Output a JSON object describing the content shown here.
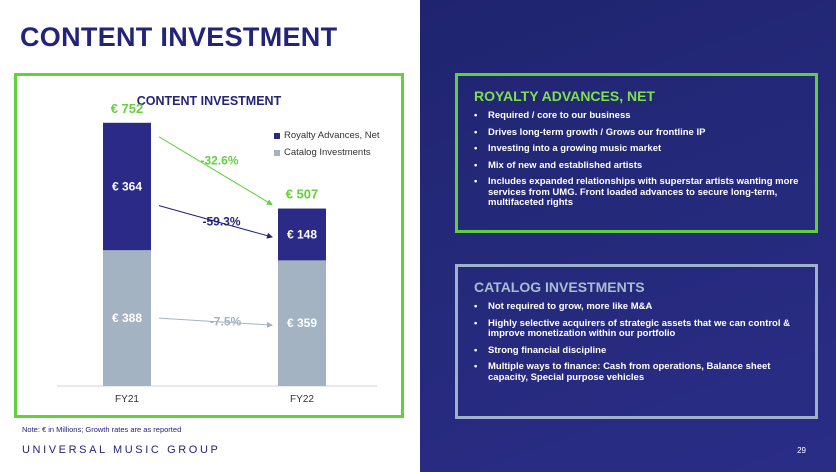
{
  "page": {
    "title": "CONTENT INVESTMENT",
    "note": "Note: € in Millions; Growth rates are as reported",
    "brand": "UNIVERSAL MUSIC GROUP",
    "page_number": "29"
  },
  "colors": {
    "navy": "#23237a",
    "royalty": "#2b2a86",
    "catalog": "#a3b3c2",
    "green": "#63d13c",
    "growth_royalty": "#23237a",
    "growth_catalog": "#a3b3c2"
  },
  "chart_data": {
    "type": "bar",
    "stacked": true,
    "title": "CONTENT INVESTMENT",
    "categories": [
      "FY21",
      "FY22"
    ],
    "series": [
      {
        "name": "Catalog Investments",
        "values": [
          388,
          359
        ],
        "labels": [
          "€ 388",
          "€ 359"
        ],
        "color": "#a3b3c2"
      },
      {
        "name": "Royalty Advances, Net",
        "values": [
          364,
          148
        ],
        "labels": [
          "€ 364",
          "€ 148"
        ],
        "color": "#2b2a86"
      }
    ],
    "totals": [
      752,
      507
    ],
    "total_labels": [
      "€ 752",
      "€ 507"
    ],
    "growth": {
      "total": "-32.6%",
      "royalty": "-59.3%",
      "catalog": "-7.5%"
    },
    "legend": [
      "Royalty Advances, Net",
      "Catalog Investments"
    ],
    "legend_position": "top-right",
    "ylim": [
      0,
      800
    ],
    "grid": false
  },
  "panels": {
    "royalty": {
      "title": "ROYALTY ADVANCES, NET",
      "items": [
        "Required / core to our business",
        "Drives long-term growth / Grows our frontline IP",
        "Investing into a growing music market",
        "Mix of new and established artists",
        "Includes expanded relationships with superstar artists wanting more services from UMG. Front loaded advances to secure long-term, multifaceted rights"
      ]
    },
    "catalog": {
      "title": "CATALOG INVESTMENTS",
      "items": [
        "Not required to grow, more like M&A",
        "Highly selective acquirers of strategic assets that we can control & improve monetization within our portfolio",
        "Strong financial discipline",
        "Multiple ways to finance: Cash from operations, Balance sheet capacity, Special purpose vehicles"
      ]
    }
  }
}
